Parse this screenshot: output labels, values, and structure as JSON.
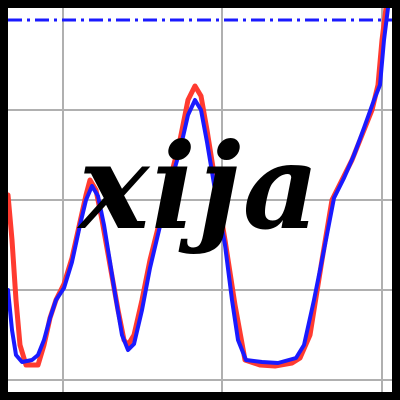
{
  "logo": {
    "wordmark": "xija",
    "colors": {
      "frame": "#000000",
      "background": "#ffffff",
      "grid": "#b0b0b0",
      "series_a": "#ff3b30",
      "series_b": "#1a1aff",
      "limit_line": "#1a1aff",
      "wordmark": "#000000"
    }
  }
}
